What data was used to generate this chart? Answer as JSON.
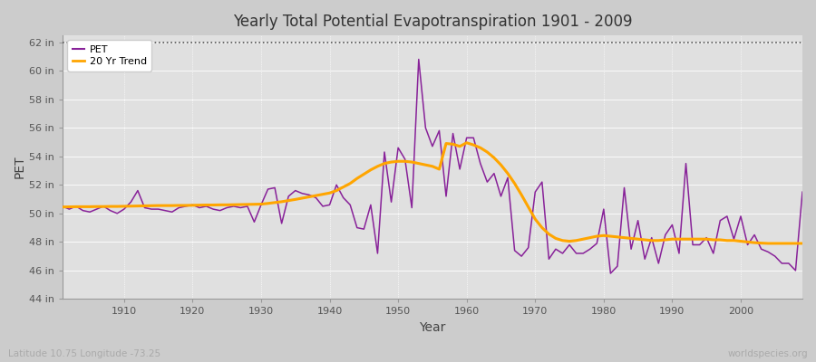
{
  "title": "Yearly Total Potential Evapotranspiration 1901 - 2009",
  "xlabel": "Year",
  "ylabel": "PET",
  "subtitle_left": "Latitude 10.75 Longitude -73.25",
  "subtitle_right": "worldspecies.org",
  "ylim": [
    44,
    62.5
  ],
  "ytick_labels": [
    "44 in",
    "46 in",
    "48 in",
    "50 in",
    "52 in",
    "54 in",
    "56 in",
    "58 in",
    "60 in",
    "62 in"
  ],
  "ytick_values": [
    44,
    46,
    48,
    50,
    52,
    54,
    56,
    58,
    60,
    62
  ],
  "xlim": [
    1901,
    2009
  ],
  "pet_color": "#882299",
  "trend_color": "#FFA500",
  "bg_color": "#CCCCCC",
  "plot_bg_color": "#E0E0E0",
  "dotted_line_y": 62,
  "xticks": [
    1910,
    1920,
    1930,
    1940,
    1950,
    1960,
    1970,
    1980,
    1990,
    2000
  ],
  "years": [
    1901,
    1902,
    1903,
    1904,
    1905,
    1906,
    1907,
    1908,
    1909,
    1910,
    1911,
    1912,
    1913,
    1914,
    1915,
    1916,
    1917,
    1918,
    1919,
    1920,
    1921,
    1922,
    1923,
    1924,
    1925,
    1926,
    1927,
    1928,
    1929,
    1930,
    1931,
    1932,
    1933,
    1934,
    1935,
    1936,
    1937,
    1938,
    1939,
    1940,
    1941,
    1942,
    1943,
    1944,
    1945,
    1946,
    1947,
    1948,
    1949,
    1950,
    1951,
    1952,
    1953,
    1954,
    1955,
    1956,
    1957,
    1958,
    1959,
    1960,
    1961,
    1962,
    1963,
    1964,
    1965,
    1966,
    1967,
    1968,
    1969,
    1970,
    1971,
    1972,
    1973,
    1974,
    1975,
    1976,
    1977,
    1978,
    1979,
    1980,
    1981,
    1982,
    1983,
    1984,
    1985,
    1986,
    1987,
    1988,
    1989,
    1990,
    1991,
    1992,
    1993,
    1994,
    1995,
    1996,
    1997,
    1998,
    1999,
    2000,
    2001,
    2002,
    2003,
    2004,
    2005,
    2006,
    2007,
    2008,
    2009
  ],
  "pet_values": [
    50.5,
    50.3,
    50.5,
    50.2,
    50.1,
    50.3,
    50.5,
    50.2,
    50.0,
    50.3,
    50.8,
    51.6,
    50.4,
    50.3,
    50.3,
    50.2,
    50.1,
    50.4,
    50.5,
    50.6,
    50.4,
    50.5,
    50.3,
    50.2,
    50.4,
    50.5,
    50.4,
    50.5,
    49.4,
    50.6,
    51.7,
    51.8,
    49.3,
    51.2,
    51.6,
    51.4,
    51.3,
    51.1,
    50.5,
    50.6,
    52.0,
    51.1,
    50.6,
    49.0,
    48.9,
    50.6,
    47.2,
    54.3,
    50.8,
    54.6,
    53.8,
    50.4,
    60.8,
    56.0,
    54.7,
    55.8,
    51.2,
    55.6,
    53.1,
    55.3,
    55.3,
    53.5,
    52.2,
    52.8,
    51.2,
    52.5,
    47.4,
    47.0,
    47.6,
    51.5,
    52.2,
    46.8,
    47.5,
    47.2,
    47.8,
    47.2,
    47.2,
    47.5,
    47.9,
    50.3,
    45.8,
    46.3,
    51.8,
    47.5,
    49.5,
    46.8,
    48.3,
    46.5,
    48.5,
    49.2,
    47.2,
    53.5,
    47.8,
    47.8,
    48.3,
    47.2,
    49.5,
    49.8,
    48.2,
    49.8,
    47.8,
    48.5,
    47.5,
    47.3,
    47.0,
    46.5,
    46.5,
    46.0,
    51.5
  ],
  "trend_values": [
    50.45,
    50.46,
    50.47,
    50.47,
    50.47,
    50.48,
    50.48,
    50.49,
    50.49,
    50.5,
    50.51,
    50.52,
    50.53,
    50.54,
    50.55,
    50.55,
    50.55,
    50.56,
    50.56,
    50.57,
    50.58,
    50.59,
    50.59,
    50.6,
    50.6,
    50.61,
    50.62,
    50.63,
    50.64,
    50.65,
    50.7,
    50.76,
    50.82,
    50.9,
    50.98,
    51.07,
    51.16,
    51.25,
    51.34,
    51.43,
    51.6,
    51.85,
    52.1,
    52.45,
    52.75,
    53.05,
    53.3,
    53.5,
    53.6,
    53.65,
    53.65,
    53.6,
    53.5,
    53.4,
    53.3,
    53.1,
    54.9,
    54.85,
    54.7,
    54.95,
    54.8,
    54.6,
    54.3,
    53.9,
    53.4,
    52.8,
    52.1,
    51.3,
    50.45,
    49.6,
    49.0,
    48.55,
    48.25,
    48.1,
    48.05,
    48.1,
    48.2,
    48.3,
    48.4,
    48.45,
    48.4,
    48.35,
    48.3,
    48.25,
    48.2,
    48.15,
    48.1,
    48.1,
    48.15,
    48.2,
    48.2,
    48.2,
    48.2,
    48.2,
    48.2,
    48.15,
    48.15,
    48.1,
    48.1,
    48.05,
    48.0,
    47.95,
    47.92,
    47.9,
    47.9,
    47.9,
    47.9,
    47.9,
    47.9
  ]
}
